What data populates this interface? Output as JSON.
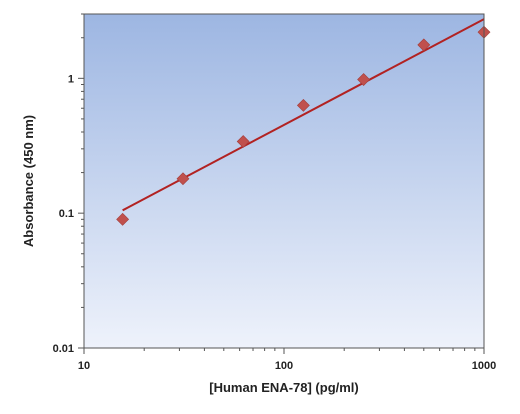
{
  "chart_data": {
    "type": "scatter",
    "title": "",
    "xlabel": "[Human ENA-78] (pg/ml)",
    "ylabel": "Absorbance (450 nm)",
    "x_scale": "log",
    "y_scale": "log",
    "xlim": [
      10,
      1000
    ],
    "ylim": [
      0.01,
      3
    ],
    "x_ticks": [
      {
        "value": 10,
        "label": "10"
      },
      {
        "value": 100,
        "label": "100"
      },
      {
        "value": 1000,
        "label": "1000"
      }
    ],
    "y_ticks": [
      {
        "value": 0.01,
        "label": "0.01"
      },
      {
        "value": 0.1,
        "label": "0.1"
      },
      {
        "value": 1,
        "label": "1"
      }
    ],
    "grid": false,
    "legend": "none",
    "series": [
      {
        "x": [
          15.6,
          31.25,
          62.5,
          125,
          250,
          500,
          1000
        ],
        "y": [
          0.09,
          0.18,
          0.34,
          0.63,
          0.98,
          1.77,
          2.2
        ],
        "marker": "diamond",
        "color": "#c0504d"
      }
    ],
    "fit_line": {
      "x": [
        15.6,
        1000
      ],
      "y": [
        0.105,
        2.75
      ],
      "color": "#b22222"
    },
    "background_gradient": [
      "#9db6e2",
      "#eef2fb"
    ]
  }
}
